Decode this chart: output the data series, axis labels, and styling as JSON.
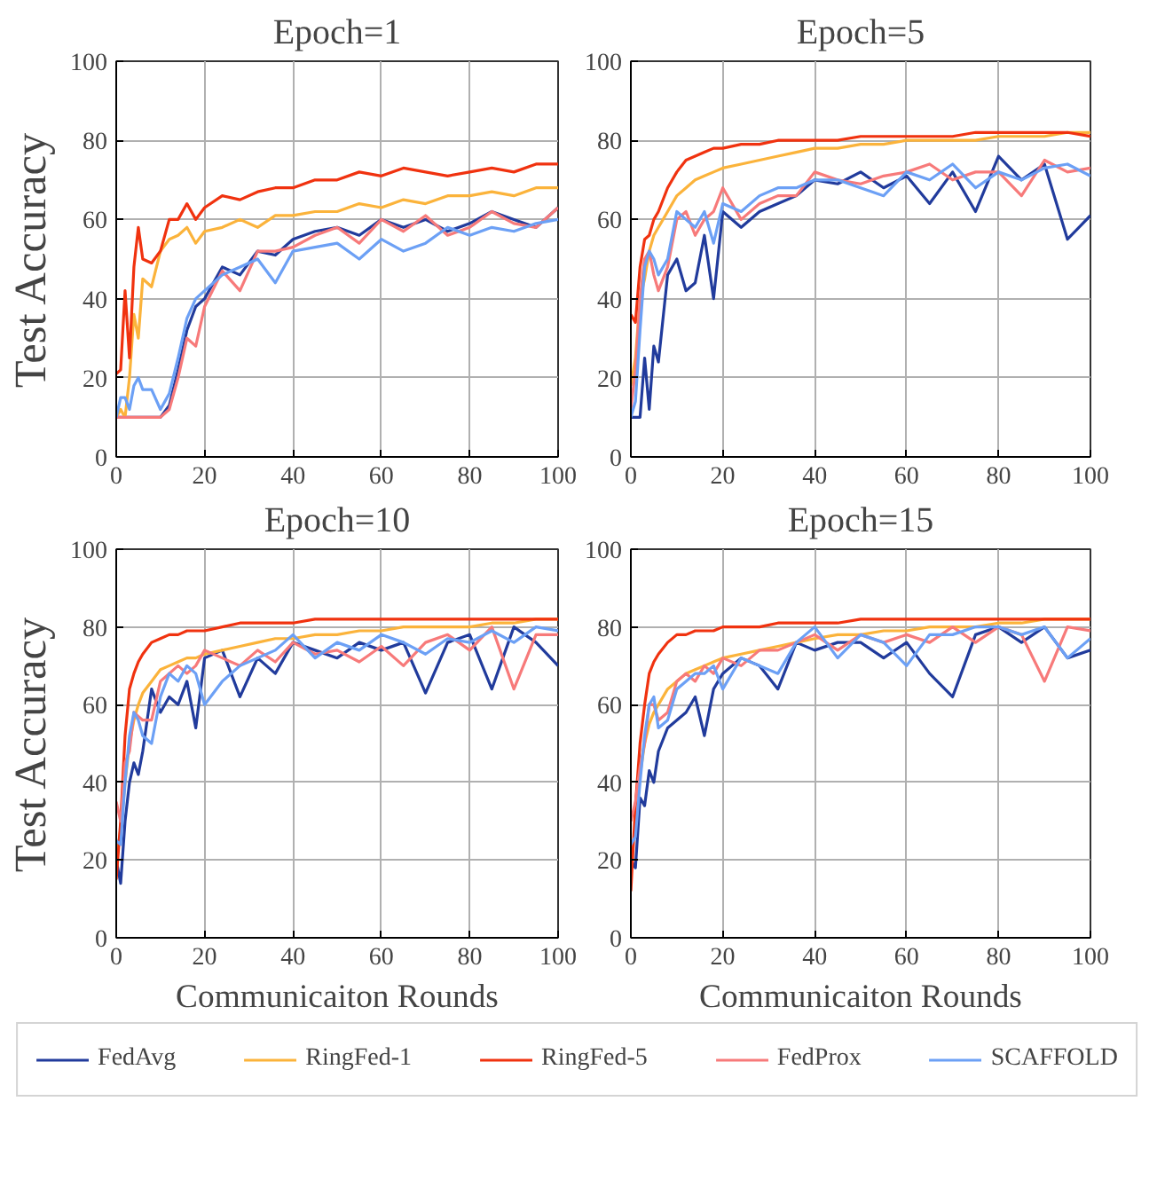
{
  "chart_data": [
    {
      "type": "line",
      "title": "Epoch=1",
      "ylabel": "Test Accuracy",
      "xlim": [
        0,
        100
      ],
      "ylim": [
        0,
        100
      ],
      "xticks": [
        0,
        20,
        40,
        60,
        80,
        100
      ],
      "yticks": [
        0,
        20,
        40,
        60,
        80,
        100
      ],
      "grid": true,
      "legend": "bottom",
      "x": [
        0,
        1,
        2,
        3,
        4,
        5,
        6,
        8,
        10,
        12,
        14,
        16,
        18,
        20,
        24,
        28,
        32,
        36,
        40,
        45,
        50,
        55,
        60,
        65,
        70,
        75,
        80,
        85,
        90,
        95,
        100
      ],
      "series": [
        {
          "name": "FedAvg",
          "color": "#213b9c",
          "values": [
            10,
            10,
            10,
            10,
            10,
            10,
            10,
            10,
            10,
            13,
            22,
            32,
            38,
            40,
            48,
            46,
            52,
            51,
            55,
            57,
            58,
            56,
            60,
            58,
            60,
            57,
            59,
            62,
            60,
            58,
            63
          ]
        },
        {
          "name": "RingFed-1",
          "color": "#fbb33b",
          "values": [
            10,
            12,
            10,
            20,
            36,
            30,
            45,
            43,
            52,
            55,
            56,
            58,
            54,
            57,
            58,
            60,
            58,
            61,
            61,
            62,
            62,
            64,
            63,
            65,
            64,
            66,
            66,
            67,
            66,
            68,
            68
          ]
        },
        {
          "name": "RingFed-5",
          "color": "#f0320f",
          "values": [
            21,
            22,
            42,
            25,
            48,
            58,
            50,
            49,
            52,
            60,
            60,
            64,
            60,
            63,
            66,
            65,
            67,
            68,
            68,
            70,
            70,
            72,
            71,
            73,
            72,
            71,
            72,
            73,
            72,
            74,
            74
          ]
        },
        {
          "name": "FedProx",
          "color": "#f77a7a",
          "values": [
            10,
            10,
            10,
            10,
            10,
            10,
            10,
            10,
            10,
            12,
            20,
            30,
            28,
            38,
            47,
            42,
            52,
            52,
            53,
            56,
            58,
            54,
            60,
            57,
            61,
            56,
            58,
            62,
            59,
            58,
            63
          ]
        },
        {
          "name": "SCAFFOLD",
          "color": "#6ca0f5",
          "values": [
            10,
            15,
            15,
            12,
            18,
            20,
            17,
            17,
            12,
            16,
            25,
            35,
            40,
            42,
            46,
            48,
            50,
            44,
            52,
            53,
            54,
            50,
            55,
            52,
            54,
            58,
            56,
            58,
            57,
            59,
            60
          ]
        }
      ]
    },
    {
      "type": "line",
      "title": "Epoch=5",
      "xlim": [
        0,
        100
      ],
      "ylim": [
        0,
        100
      ],
      "xticks": [
        0,
        20,
        40,
        60,
        80,
        100
      ],
      "yticks": [
        0,
        20,
        40,
        60,
        80,
        100
      ],
      "grid": true,
      "x": [
        0,
        1,
        2,
        3,
        4,
        5,
        6,
        8,
        10,
        12,
        14,
        16,
        18,
        20,
        24,
        28,
        32,
        36,
        40,
        45,
        50,
        55,
        60,
        65,
        70,
        75,
        80,
        85,
        90,
        95,
        100
      ],
      "series": [
        {
          "color": "#213b9c",
          "values": [
            10,
            10,
            10,
            25,
            12,
            28,
            24,
            46,
            50,
            42,
            44,
            56,
            40,
            62,
            58,
            62,
            64,
            66,
            70,
            69,
            72,
            68,
            71,
            64,
            72,
            62,
            76,
            70,
            74,
            55,
            61
          ]
        },
        {
          "color": "#fbb33b",
          "values": [
            18,
            25,
            40,
            45,
            52,
            56,
            58,
            62,
            66,
            68,
            70,
            71,
            72,
            73,
            74,
            75,
            76,
            77,
            78,
            78,
            79,
            79,
            80,
            80,
            80,
            80,
            81,
            81,
            81,
            82,
            82
          ]
        },
        {
          "color": "#f0320f",
          "values": [
            36,
            34,
            48,
            55,
            56,
            60,
            62,
            68,
            72,
            75,
            76,
            77,
            78,
            78,
            79,
            79,
            80,
            80,
            80,
            80,
            81,
            81,
            81,
            81,
            81,
            82,
            82,
            82,
            82,
            82,
            81
          ]
        },
        {
          "color": "#f77a7a",
          "values": [
            12,
            22,
            40,
            50,
            52,
            46,
            42,
            48,
            60,
            62,
            56,
            60,
            62,
            68,
            60,
            64,
            66,
            66,
            72,
            70,
            69,
            71,
            72,
            74,
            70,
            72,
            72,
            66,
            75,
            72,
            73
          ]
        },
        {
          "color": "#6ca0f5",
          "values": [
            10,
            14,
            32,
            48,
            52,
            50,
            46,
            50,
            62,
            60,
            58,
            62,
            54,
            64,
            62,
            66,
            68,
            68,
            70,
            70,
            68,
            66,
            72,
            70,
            74,
            68,
            72,
            70,
            73,
            74,
            71
          ]
        }
      ]
    },
    {
      "type": "line",
      "title": "Epoch=10",
      "xlabel": "Communicaiton Rounds",
      "ylabel": "Test Accuracy",
      "xlim": [
        0,
        100
      ],
      "ylim": [
        0,
        100
      ],
      "xticks": [
        0,
        20,
        40,
        60,
        80,
        100
      ],
      "yticks": [
        0,
        20,
        40,
        60,
        80,
        100
      ],
      "grid": true,
      "x": [
        0,
        1,
        2,
        3,
        4,
        5,
        6,
        8,
        10,
        12,
        14,
        16,
        18,
        20,
        24,
        28,
        32,
        36,
        40,
        45,
        50,
        55,
        60,
        65,
        70,
        75,
        80,
        85,
        90,
        95,
        100
      ],
      "series": [
        {
          "color": "#213b9c",
          "values": [
            20,
            14,
            30,
            40,
            45,
            42,
            48,
            64,
            58,
            62,
            60,
            66,
            54,
            72,
            74,
            62,
            72,
            68,
            76,
            74,
            72,
            76,
            74,
            76,
            63,
            76,
            78,
            64,
            80,
            76,
            70
          ]
        },
        {
          "color": "#fbb33b",
          "values": [
            20,
            28,
            40,
            50,
            56,
            60,
            63,
            66,
            69,
            70,
            71,
            72,
            72,
            73,
            74,
            75,
            76,
            77,
            77,
            78,
            78,
            79,
            79,
            80,
            80,
            80,
            80,
            81,
            81,
            82,
            82
          ]
        },
        {
          "color": "#f0320f",
          "values": [
            15,
            30,
            52,
            64,
            68,
            71,
            73,
            76,
            77,
            78,
            78,
            79,
            79,
            79,
            80,
            81,
            81,
            81,
            81,
            82,
            82,
            82,
            82,
            82,
            82,
            82,
            82,
            82,
            82,
            82,
            82
          ]
        },
        {
          "color": "#f77a7a",
          "values": [
            35,
            30,
            45,
            48,
            58,
            57,
            56,
            56,
            66,
            68,
            70,
            68,
            70,
            74,
            72,
            70,
            74,
            71,
            76,
            73,
            74,
            71,
            75,
            70,
            76,
            78,
            74,
            80,
            64,
            78,
            78
          ]
        },
        {
          "color": "#6ca0f5",
          "values": [
            25,
            24,
            40,
            52,
            58,
            56,
            52,
            50,
            62,
            68,
            66,
            70,
            68,
            60,
            66,
            70,
            72,
            74,
            78,
            72,
            76,
            74,
            78,
            76,
            73,
            77,
            76,
            79,
            76,
            80,
            79
          ]
        }
      ]
    },
    {
      "type": "line",
      "title": "Epoch=15",
      "xlabel": "Communicaiton Rounds",
      "xlim": [
        0,
        100
      ],
      "ylim": [
        0,
        100
      ],
      "xticks": [
        0,
        20,
        40,
        60,
        80,
        100
      ],
      "yticks": [
        0,
        20,
        40,
        60,
        80,
        100
      ],
      "grid": true,
      "x": [
        0,
        1,
        2,
        3,
        4,
        5,
        6,
        8,
        10,
        12,
        14,
        16,
        18,
        20,
        24,
        28,
        32,
        36,
        40,
        45,
        50,
        55,
        60,
        65,
        70,
        75,
        80,
        85,
        90,
        95,
        100
      ],
      "series": [
        {
          "color": "#213b9c",
          "values": [
            20,
            18,
            36,
            34,
            43,
            40,
            48,
            54,
            56,
            58,
            62,
            52,
            64,
            68,
            72,
            70,
            64,
            76,
            74,
            76,
            76,
            72,
            76,
            68,
            62,
            78,
            80,
            76,
            80,
            72,
            74
          ]
        },
        {
          "color": "#fbb33b",
          "values": [
            null,
            null,
            42,
            50,
            55,
            58,
            60,
            64,
            66,
            68,
            69,
            70,
            71,
            72,
            73,
            74,
            75,
            76,
            77,
            78,
            78,
            79,
            79,
            80,
            80,
            80,
            81,
            81,
            82,
            82,
            82
          ]
        },
        {
          "color": "#f0320f",
          "values": [
            12,
            34,
            50,
            60,
            68,
            71,
            73,
            76,
            78,
            78,
            79,
            79,
            79,
            80,
            80,
            80,
            81,
            81,
            81,
            81,
            82,
            82,
            82,
            82,
            82,
            82,
            82,
            82,
            82,
            82,
            82
          ]
        },
        {
          "color": "#f77a7a",
          "values": [
            30,
            35,
            44,
            50,
            60,
            60,
            56,
            58,
            66,
            68,
            66,
            70,
            68,
            72,
            70,
            74,
            74,
            76,
            78,
            74,
            78,
            76,
            78,
            76,
            80,
            76,
            80,
            78,
            66,
            80,
            79
          ]
        },
        {
          "color": "#6ca0f5",
          "values": [
            24,
            26,
            40,
            52,
            60,
            62,
            54,
            56,
            64,
            66,
            68,
            68,
            70,
            64,
            72,
            70,
            68,
            76,
            80,
            72,
            78,
            76,
            70,
            78,
            78,
            80,
            80,
            78,
            80,
            72,
            77
          ]
        }
      ]
    }
  ]
}
